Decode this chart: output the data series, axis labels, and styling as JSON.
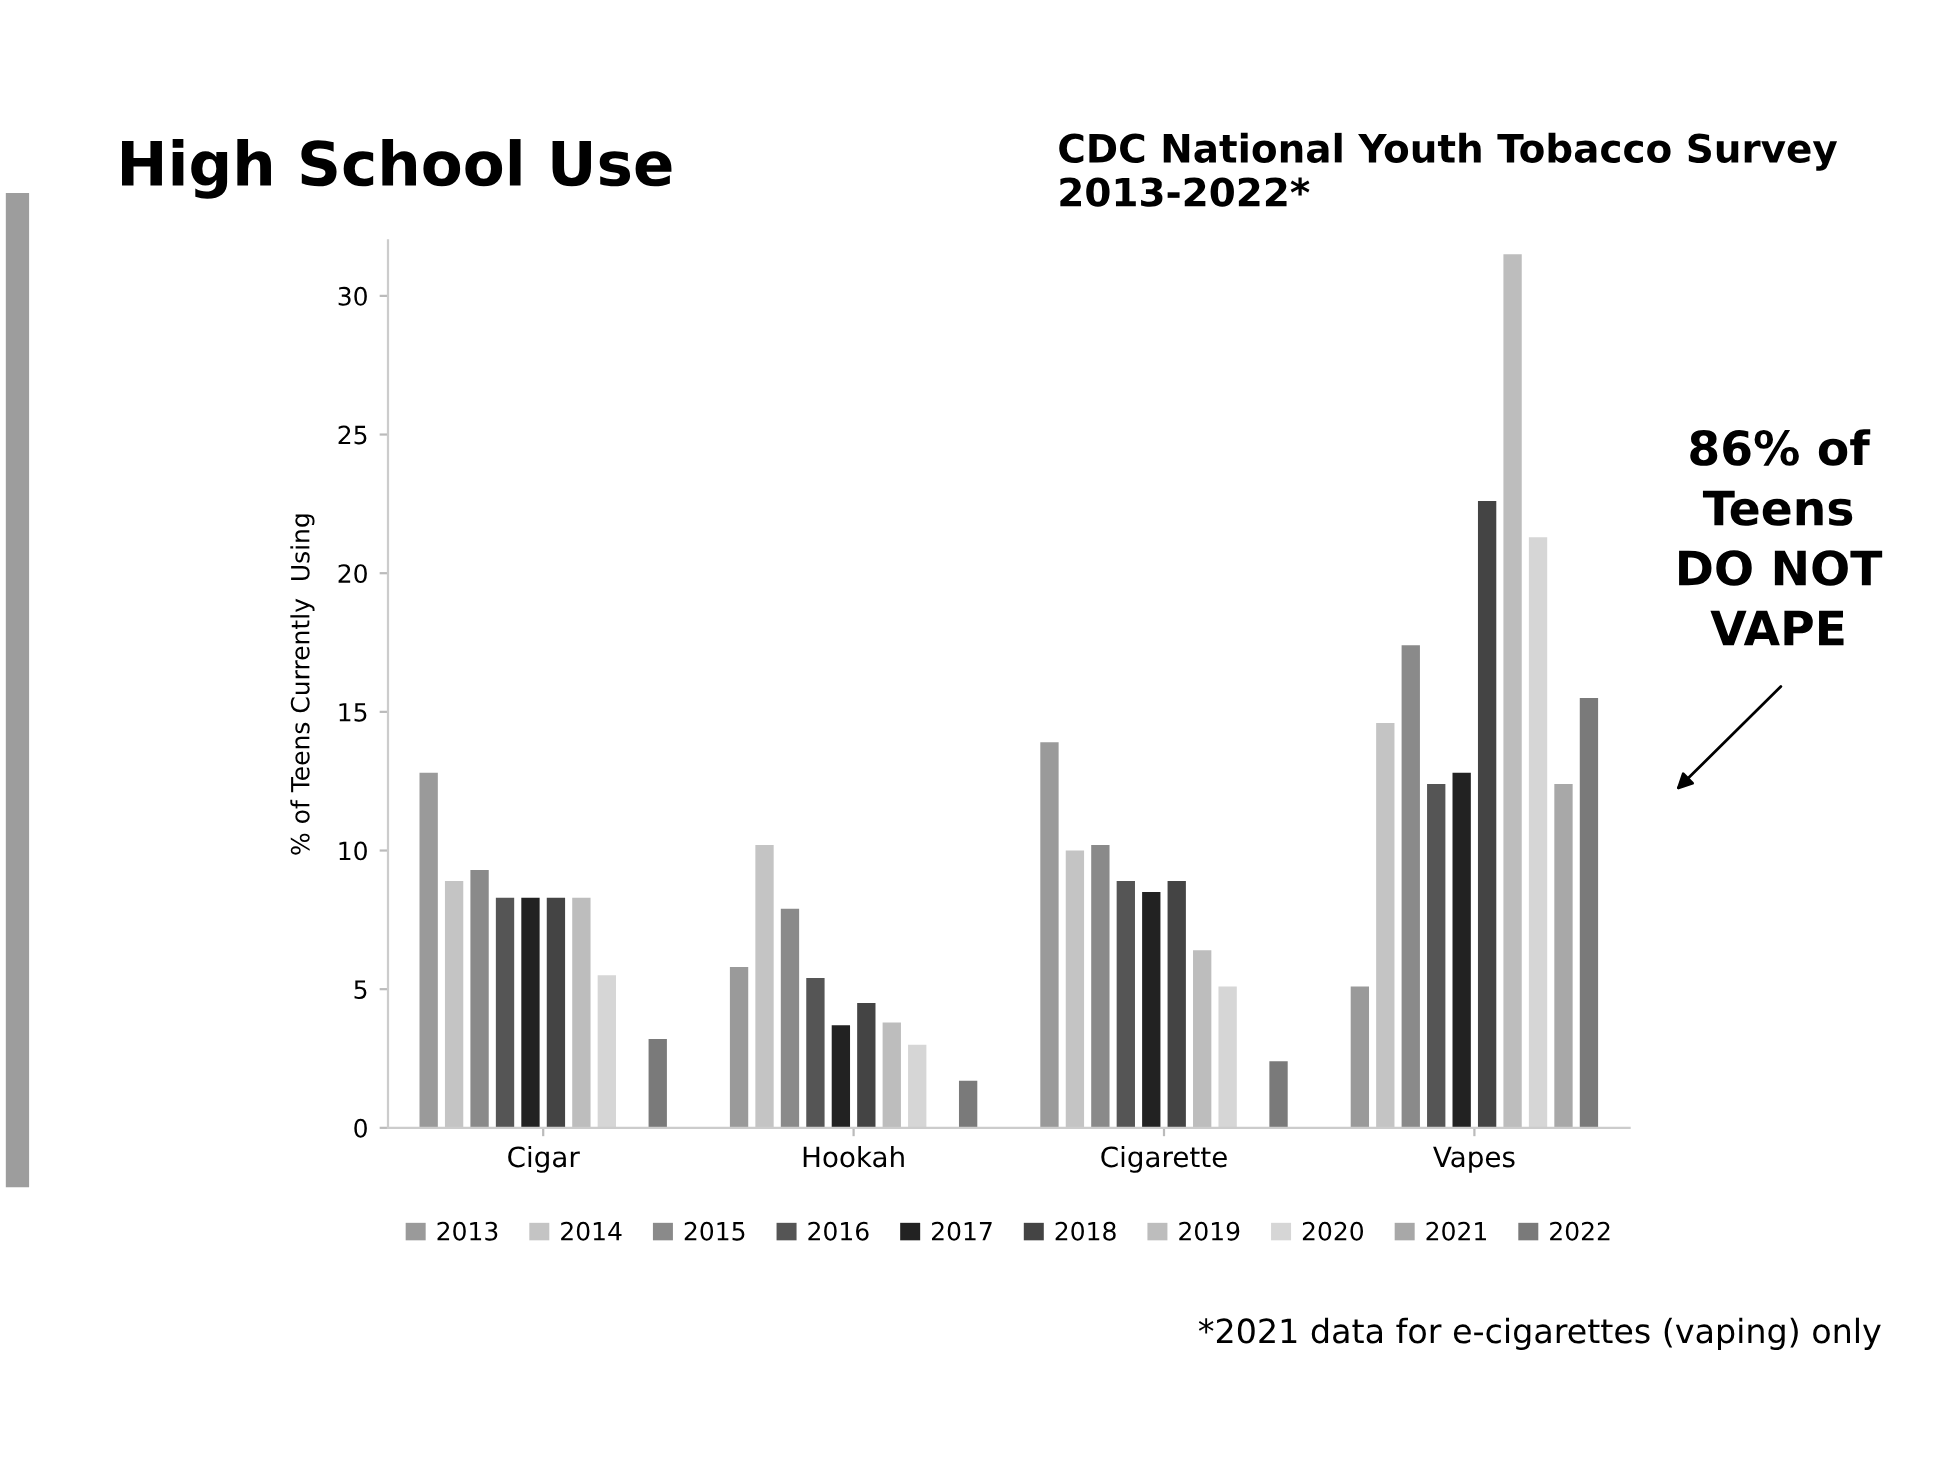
{
  "chart_data": {
    "type": "bar",
    "title": "High School Use",
    "subtitle": "CDC National Youth Tobacco Survey 2013-2022*",
    "ylabel": "% of Teens Currently  Using",
    "categories": [
      "Cigar",
      "Hookah",
      "Cigarette",
      "Vapes"
    ],
    "series": [
      {
        "name": "2013",
        "color": "#9a9a9a",
        "values": [
          12.8,
          5.8,
          13.9,
          5.1
        ]
      },
      {
        "name": "2014",
        "color": "#c4c4c4",
        "values": [
          8.9,
          10.2,
          10.0,
          14.6
        ]
      },
      {
        "name": "2015",
        "color": "#8a8a8a",
        "values": [
          9.3,
          7.9,
          10.2,
          17.4
        ]
      },
      {
        "name": "2016",
        "color": "#555555",
        "values": [
          8.3,
          5.4,
          8.9,
          12.4
        ]
      },
      {
        "name": "2017",
        "color": "#222222",
        "values": [
          8.3,
          3.7,
          8.5,
          12.8
        ]
      },
      {
        "name": "2018",
        "color": "#444444",
        "values": [
          8.3,
          4.5,
          8.9,
          22.6
        ]
      },
      {
        "name": "2019",
        "color": "#bdbdbd",
        "values": [
          8.3,
          3.8,
          6.4,
          31.5
        ]
      },
      {
        "name": "2020",
        "color": "#d6d6d6",
        "values": [
          5.5,
          3.0,
          5.1,
          21.3
        ]
      },
      {
        "name": "2021",
        "color": "#a8a8a8",
        "values": [
          null,
          null,
          null,
          12.4
        ]
      },
      {
        "name": "2022",
        "color": "#7a7a7a",
        "values": [
          3.2,
          1.7,
          2.4,
          15.5
        ]
      }
    ],
    "ylim": [
      0,
      32
    ],
    "yticks": [
      0,
      5,
      10,
      15,
      20,
      25,
      30
    ],
    "grid": false,
    "legend": "bottom",
    "annotations": [
      "86% of Teens DO NOT VAPE",
      "*2021 data for e-cigarettes (vaping) only"
    ]
  }
}
